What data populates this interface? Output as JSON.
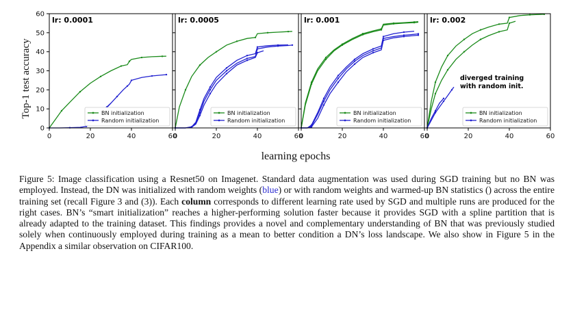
{
  "figure": {
    "ylabel": "Top-1 test accuracy",
    "xlabel": "learning epochs"
  },
  "chart_data": [
    {
      "type": "line",
      "title": "lr: 0.0001",
      "xlim": [
        0,
        60
      ],
      "ylim": [
        0,
        60
      ],
      "xticks": [
        "0",
        "20",
        "40",
        "60"
      ],
      "yticks": [
        "0",
        "10",
        "20",
        "30",
        "40",
        "50",
        "60"
      ],
      "legend": [
        "BN initialization",
        "Random initialization"
      ],
      "legend_position": "lower-right",
      "annotations": [],
      "series": [
        {
          "name": "BN initialization",
          "color": "#1a8a1a",
          "x": [
            0,
            3,
            6,
            10,
            15,
            20,
            25,
            30,
            35,
            38,
            39,
            40,
            45,
            50,
            55,
            57
          ],
          "y": [
            0,
            4.5,
            9,
            13.5,
            19,
            23.5,
            27,
            30,
            32.5,
            33.2,
            35,
            36,
            37,
            37.4,
            37.6,
            37.7
          ]
        },
        {
          "name": "Random initialization",
          "color": "#2020d0",
          "x": [
            0,
            5,
            10,
            15,
            18,
            20,
            22,
            25,
            27,
            30,
            33,
            36,
            38,
            39,
            40,
            45,
            50,
            55,
            57
          ],
          "y": [
            0,
            0,
            0.1,
            0.3,
            0.8,
            2.5,
            4.5,
            7.5,
            9.5,
            13,
            16.5,
            20,
            22,
            23,
            25,
            26.5,
            27.3,
            27.8,
            28
          ]
        },
        {
          "name": "Random initialization",
          "color": "#2020d0",
          "x": [
            18,
            20,
            22,
            25,
            28,
            30
          ],
          "y": [
            0.8,
            3.5,
            6,
            9,
            11,
            13
          ]
        }
      ]
    },
    {
      "type": "line",
      "title": "lr: 0.0005",
      "xlim": [
        0,
        60
      ],
      "ylim": [
        0,
        60
      ],
      "xticks": [
        "0",
        "20",
        "40",
        "60"
      ],
      "yticks": [],
      "legend": [
        "BN initialization",
        "Random initialization"
      ],
      "legend_position": "lower-right",
      "annotations": [],
      "series": [
        {
          "name": "BN initialization",
          "color": "#1a8a1a",
          "x": [
            0,
            2,
            5,
            8,
            12,
            16,
            20,
            25,
            30,
            35,
            39,
            40,
            45,
            50,
            55,
            57
          ],
          "y": [
            0,
            11,
            20,
            27,
            33,
            37,
            40,
            43.5,
            45.5,
            47,
            47.5,
            49.5,
            50,
            50.3,
            50.6,
            50.7
          ]
        },
        {
          "name": "Random initialization",
          "color": "#2020d0",
          "x": [
            0,
            5,
            8,
            10,
            12,
            14,
            17,
            20,
            25,
            30,
            35,
            39,
            40,
            45,
            50,
            55,
            57
          ],
          "y": [
            0,
            0,
            0.5,
            2.5,
            8,
            14,
            20,
            25,
            30,
            34,
            36.5,
            37.5,
            41.5,
            42.5,
            43,
            43.3,
            43.5
          ]
        },
        {
          "name": "Random initialization",
          "color": "#2020d0",
          "x": [
            0,
            5,
            8,
            10,
            12,
            14,
            17,
            20,
            25,
            30,
            35,
            39,
            40,
            43
          ],
          "y": [
            0,
            0,
            0.4,
            2,
            6.5,
            12,
            18,
            23,
            28.5,
            33,
            35.5,
            37,
            39.5,
            40.5
          ]
        },
        {
          "name": "Random initialization",
          "color": "#2020d0",
          "x": [
            0,
            5,
            8,
            10,
            12,
            14,
            17,
            20,
            25,
            30,
            35,
            39,
            40,
            45,
            50,
            55
          ],
          "y": [
            0,
            0,
            0.6,
            3,
            9.5,
            15.5,
            21.5,
            26.5,
            31.5,
            35.5,
            38,
            39,
            42.5,
            43.2,
            43.5,
            43.6
          ]
        }
      ]
    },
    {
      "type": "line",
      "title": "lr: 0.001",
      "xlim": [
        0,
        60
      ],
      "ylim": [
        0,
        60
      ],
      "xticks": [
        "0",
        "20",
        "40",
        "60"
      ],
      "yticks": [],
      "legend": [
        "BN initialization",
        "Random initialization"
      ],
      "legend_position": "lower-right",
      "annotations": [],
      "series": [
        {
          "name": "BN initialization",
          "color": "#1a8a1a",
          "x": [
            0,
            2,
            5,
            8,
            12,
            16,
            20,
            25,
            30,
            35,
            39,
            40,
            45,
            50,
            55,
            57
          ],
          "y": [
            0,
            13,
            24,
            31,
            37,
            41,
            44,
            47,
            49.5,
            51,
            52,
            54.5,
            55,
            55.3,
            55.6,
            55.8
          ]
        },
        {
          "name": "BN initialization",
          "color": "#1a8a1a",
          "x": [
            0,
            2,
            5,
            8,
            12,
            16,
            20,
            25,
            30,
            35,
            39,
            40,
            45,
            50,
            55,
            57
          ],
          "y": [
            0,
            12,
            23,
            30,
            36,
            40.5,
            43.5,
            46.5,
            49,
            50.5,
            51.5,
            54,
            54.7,
            55,
            55.3,
            55.5
          ]
        },
        {
          "name": "Random initialization",
          "color": "#2020d0",
          "x": [
            0,
            3,
            5,
            8,
            11,
            14,
            18,
            22,
            26,
            30,
            35,
            39,
            40,
            45,
            50,
            55,
            57
          ],
          "y": [
            0,
            0,
            1,
            7,
            14,
            20,
            26,
            31,
            35,
            38,
            40.5,
            42,
            47,
            48,
            48.7,
            49.2,
            49.4
          ]
        },
        {
          "name": "Random initialization",
          "color": "#2020d0",
          "x": [
            0,
            3,
            5,
            8,
            11,
            14,
            18,
            22,
            26,
            30,
            35,
            39,
            40,
            45,
            50,
            55,
            57
          ],
          "y": [
            0,
            0,
            0.5,
            5,
            12,
            18,
            24,
            29.5,
            33.5,
            37,
            39.5,
            41,
            46,
            47.3,
            48,
            48.5,
            48.7
          ]
        },
        {
          "name": "Random initialization",
          "color": "#2020d0",
          "x": [
            0,
            3,
            5,
            8,
            11,
            14,
            18,
            22,
            26,
            30,
            35,
            39,
            40,
            45,
            50,
            55
          ],
          "y": [
            0,
            0,
            1.5,
            8,
            15.5,
            21.5,
            27.5,
            32,
            36,
            39,
            41.5,
            43,
            48,
            49.5,
            50.3,
            50.8
          ]
        }
      ]
    },
    {
      "type": "line",
      "title": "lr: 0.002",
      "xlim": [
        0,
        60
      ],
      "ylim": [
        0,
        60
      ],
      "xticks": [
        "0",
        "20",
        "40",
        "60"
      ],
      "yticks": [],
      "legend": [
        "BN initialization",
        "Random initialization"
      ],
      "legend_position": "lower-right",
      "annotations": [
        "diverged training",
        "with random init."
      ],
      "series": [
        {
          "name": "BN initialization",
          "color": "#1a8a1a",
          "x": [
            0,
            2,
            4,
            7,
            10,
            14,
            18,
            22,
            26,
            30,
            35,
            39,
            40,
            45,
            50,
            55,
            57
          ],
          "y": [
            0,
            14,
            24,
            32,
            38,
            43,
            46.5,
            49.5,
            51.5,
            53,
            54.5,
            55,
            58,
            59,
            59.4,
            59.6,
            59.7
          ]
        },
        {
          "name": "BN initialization",
          "color": "#1a8a1a",
          "x": [
            0,
            2,
            4,
            7,
            10,
            14,
            18,
            22,
            26,
            30,
            35,
            39,
            40,
            43
          ],
          "y": [
            0,
            10,
            18,
            25,
            30.5,
            36,
            40,
            43.5,
            46.5,
            48.5,
            50.5,
            51.5,
            55,
            56
          ]
        },
        {
          "name": "Random initialization",
          "color": "#2020d0",
          "x": [
            0,
            2,
            4,
            6,
            8,
            10,
            12,
            13
          ],
          "y": [
            0,
            4,
            8,
            11,
            14,
            17,
            20,
            21.5
          ]
        },
        {
          "name": "Random initialization",
          "color": "#2020d0",
          "x": [
            0,
            2,
            4,
            6,
            8
          ],
          "y": [
            0,
            5,
            9,
            13,
            15.5
          ]
        }
      ]
    }
  ],
  "caption": {
    "p1": "Figure 5: Image classification using a Resnet50 on Imagenet. Standard data augmentation was used during SGD training but no BN was employed. Instead, the DN was initialized with random weights (",
    "blue": "blue",
    "p2": ") or with random weights and warmed-up BN statistics () across the entire training set (recall Figure 3 and (3)). Each ",
    "bold": "column",
    "p3": " corresponds to different learning rate used by SGD and multiple runs are produced for the right cases. BN’s “smart initialization” reaches a higher-performing solution faster because it provides SGD with a spline partition that is already adapted to the training dataset. This findings provides a novel and complementary understanding of BN that was previously studied solely when continuously employed during training as a mean to better condition a DN’s loss landscape. We also show in Figure 5 in the Appendix a similar observation on CIFAR100."
  }
}
